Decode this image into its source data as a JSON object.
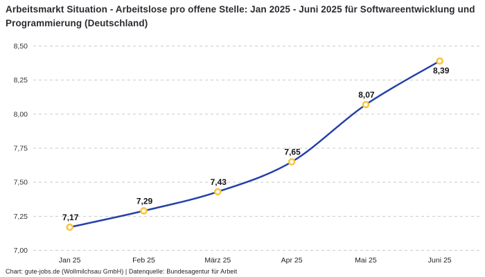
{
  "header": {
    "title": "Arbeitsmarkt Situation - Arbeitslose pro offene Stelle: Jan 2025 - Juni 2025 für Softwareentwicklung und Programmierung (Deutschland)"
  },
  "footer": {
    "text": "Chart: gute-jobs.de (Wollmilchsau GmbH) | Datenquelle: Bundesagentur für Arbeit"
  },
  "chart_data": {
    "type": "line",
    "title": "Arbeitsmarkt Situation - Arbeitslose pro offene Stelle: Jan 2025 - Juni 2025 für Softwareentwicklung und Programmierung (Deutschland)",
    "xlabel": "",
    "ylabel": "",
    "categories": [
      "Jan 25",
      "Feb 25",
      "März 25",
      "Apr 25",
      "Mai 25",
      "Juni 25"
    ],
    "values": [
      7.17,
      7.29,
      7.43,
      7.65,
      8.07,
      8.39
    ],
    "point_labels": [
      "7,17",
      "7,29",
      "7,43",
      "7,65",
      "8,07",
      "8,39"
    ],
    "y_ticks": [
      7.0,
      7.25,
      7.5,
      7.75,
      8.0,
      8.25,
      8.5
    ],
    "y_tick_labels": [
      "7,00",
      "7,25",
      "7,50",
      "7,75",
      "8,00",
      "8,25",
      "8,50"
    ],
    "ylim": [
      7.0,
      8.5
    ],
    "grid": "horizontal-dashed",
    "legend": "none",
    "line_color": "#2440a8",
    "marker_ring_color": "#f8c63e",
    "marker_fill_color": "#ffffff",
    "gridline_color": "#c9c9c9",
    "last_label_below": true
  }
}
